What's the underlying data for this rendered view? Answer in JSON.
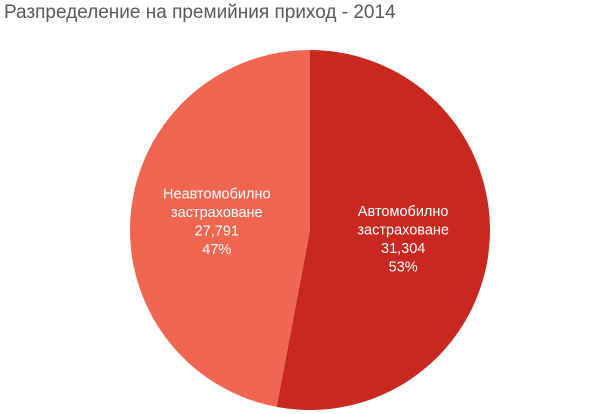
{
  "chart_data": {
    "type": "pie",
    "title": "Разпределение на премийния приход - 2014",
    "start_angle_deg": 0,
    "direction": "clockwise",
    "slices": [
      {
        "label_lines": [
          "Автомобилно",
          "застраховане"
        ],
        "value": 31304,
        "value_text": "31,304",
        "percent_text": "53%",
        "color": "#c8281f"
      },
      {
        "label_lines": [
          "Неавтомобилно",
          "застраховане"
        ],
        "value": 27791,
        "value_text": "27,791",
        "percent_text": "47%",
        "color": "#f06650"
      }
    ]
  }
}
